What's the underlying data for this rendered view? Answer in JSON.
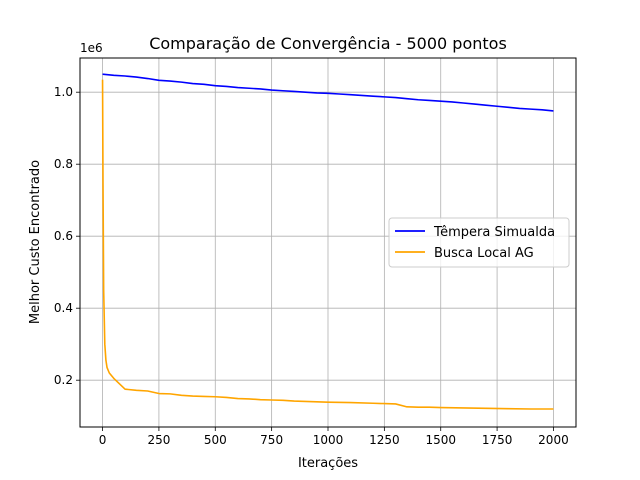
{
  "chart_data": {
    "type": "line",
    "title": "Comparação de Convergência - 5000 pontos",
    "xlabel": "Iterações",
    "ylabel": "Melhor Custo Encontrado",
    "y_offset_label": "1e6",
    "xlim": [
      -100,
      2100
    ],
    "ylim": [
      0.07,
      1.095
    ],
    "x_ticks": [
      0,
      250,
      500,
      750,
      1000,
      1250,
      1500,
      1750,
      2000
    ],
    "x_tick_labels": [
      "0",
      "250",
      "500",
      "750",
      "1000",
      "1250",
      "1500",
      "1750",
      "2000"
    ],
    "y_ticks": [
      0.2,
      0.4,
      0.6,
      0.8,
      1.0
    ],
    "y_tick_labels": [
      "0.2",
      "0.4",
      "0.6",
      "0.8",
      "1.0"
    ],
    "grid": true,
    "legend_position": "center-right",
    "series": [
      {
        "name": "Têmpera Simualda",
        "color": "#0000ff",
        "x": [
          0,
          50,
          100,
          150,
          200,
          250,
          300,
          350,
          400,
          450,
          500,
          550,
          600,
          650,
          700,
          750,
          800,
          850,
          900,
          950,
          1000,
          1050,
          1100,
          1150,
          1200,
          1250,
          1300,
          1350,
          1400,
          1450,
          1500,
          1550,
          1600,
          1650,
          1700,
          1750,
          1800,
          1850,
          1900,
          1950,
          2000
        ],
        "y": [
          1.05,
          1.047,
          1.045,
          1.042,
          1.038,
          1.033,
          1.031,
          1.028,
          1.024,
          1.022,
          1.018,
          1.016,
          1.013,
          1.011,
          1.009,
          1.006,
          1.004,
          1.002,
          1.0,
          0.998,
          0.997,
          0.995,
          0.993,
          0.991,
          0.989,
          0.987,
          0.985,
          0.982,
          0.979,
          0.977,
          0.975,
          0.973,
          0.97,
          0.967,
          0.964,
          0.961,
          0.958,
          0.955,
          0.953,
          0.951,
          0.948
        ]
      },
      {
        "name": "Busca Local AG",
        "color": "#ffa500",
        "x": [
          0,
          2,
          5,
          10,
          15,
          20,
          30,
          50,
          75,
          100,
          150,
          200,
          250,
          300,
          350,
          400,
          450,
          500,
          550,
          600,
          650,
          700,
          750,
          800,
          850,
          900,
          950,
          1000,
          1100,
          1200,
          1250,
          1300,
          1350,
          1400,
          1450,
          1500,
          1600,
          1700,
          1800,
          1900,
          2000
        ],
        "y": [
          1.035,
          0.75,
          0.45,
          0.3,
          0.255,
          0.235,
          0.22,
          0.205,
          0.19,
          0.175,
          0.172,
          0.17,
          0.163,
          0.162,
          0.158,
          0.156,
          0.155,
          0.154,
          0.152,
          0.149,
          0.148,
          0.146,
          0.145,
          0.144,
          0.142,
          0.141,
          0.14,
          0.139,
          0.138,
          0.136,
          0.135,
          0.134,
          0.126,
          0.125,
          0.125,
          0.124,
          0.123,
          0.122,
          0.121,
          0.12,
          0.12
        ]
      }
    ]
  }
}
